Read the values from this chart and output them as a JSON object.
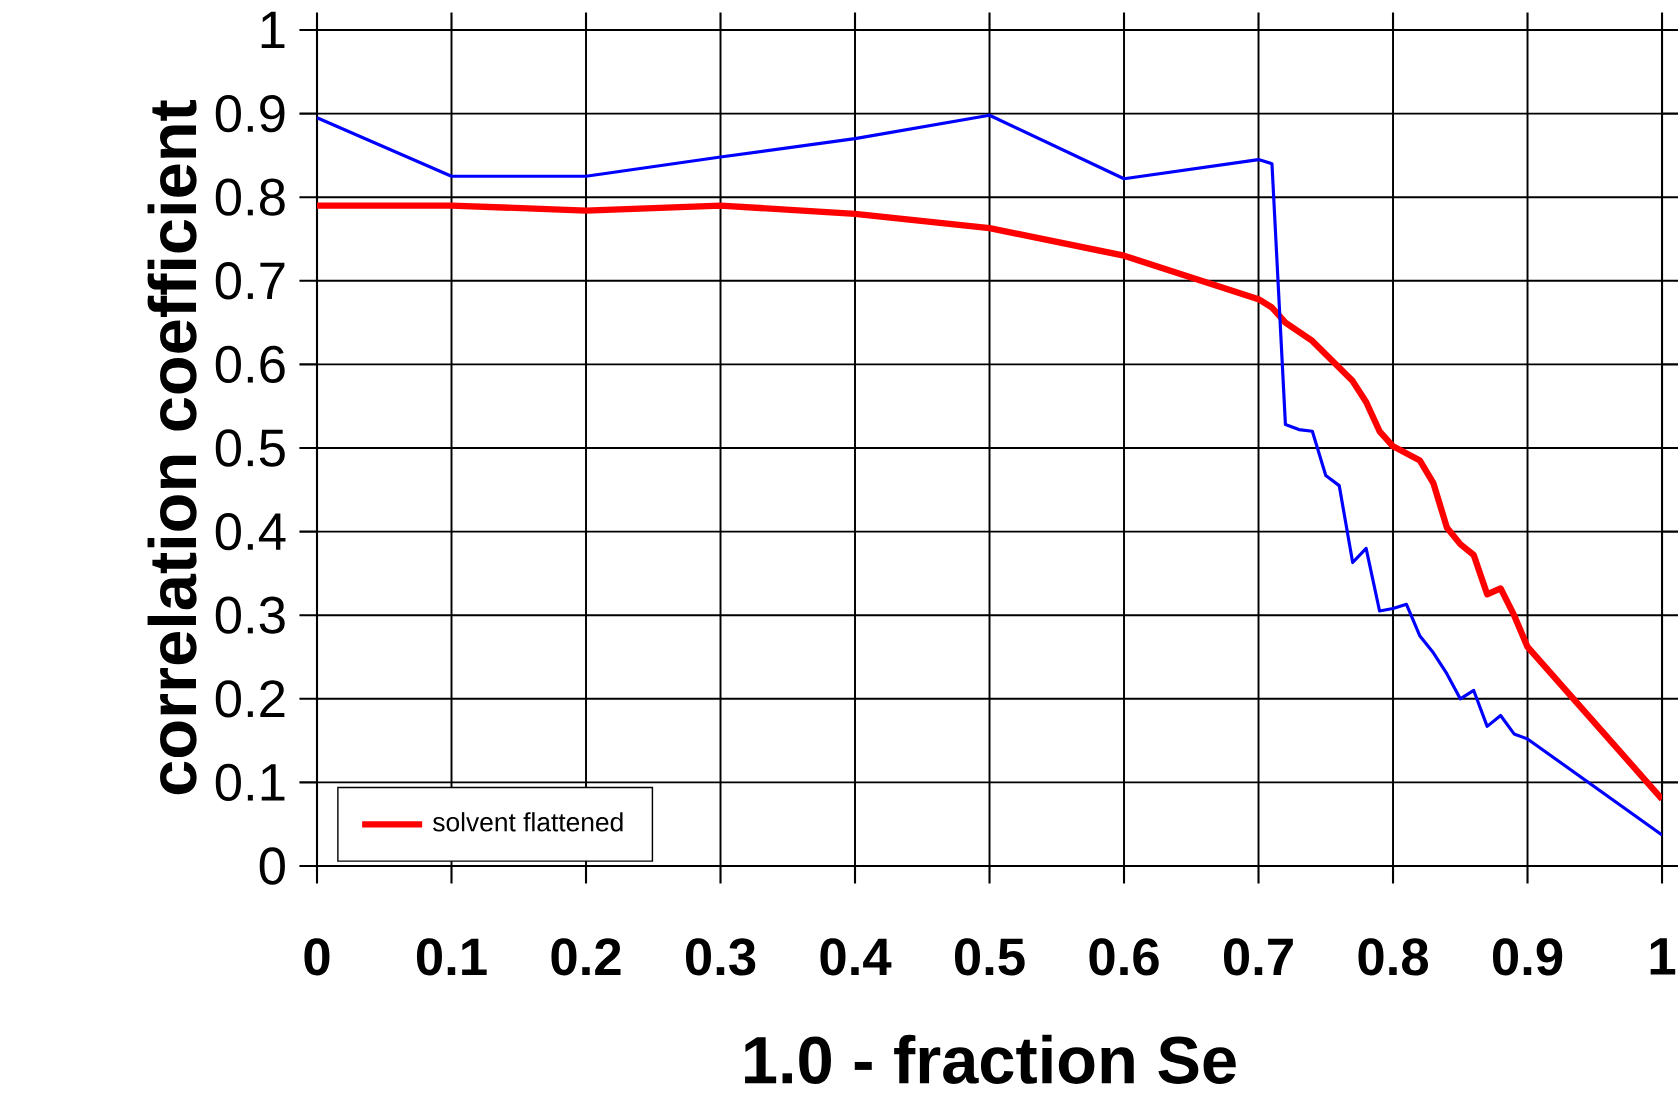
{
  "chart_data": {
    "type": "line",
    "xlabel": "1.0 - fraction Se",
    "ylabel": "correlation coefficient",
    "xlim": [
      0,
      1
    ],
    "ylim": [
      0,
      1
    ],
    "xticks": [
      0,
      0.1,
      0.2,
      0.3,
      0.4,
      0.5,
      0.6,
      0.7,
      0.8,
      0.9,
      1
    ],
    "yticks": [
      0,
      0.1,
      0.2,
      0.3,
      0.4,
      0.5,
      0.6,
      0.7,
      0.8,
      0.9,
      1
    ],
    "grid": true,
    "legend": "bottom left",
    "marker": "none",
    "series": [
      {
        "name": "solvent flattened",
        "color": "#ff0000",
        "x": [
          0,
          0.1,
          0.2,
          0.3,
          0.4,
          0.5,
          0.6,
          0.7,
          0.71,
          0.72,
          0.74,
          0.77,
          0.78,
          0.79,
          0.8,
          0.82,
          0.83,
          0.84,
          0.85,
          0.86,
          0.87,
          0.88,
          0.89,
          0.9,
          1
        ],
        "values": [
          0.79,
          0.79,
          0.784,
          0.79,
          0.78,
          0.763,
          0.73,
          0.678,
          0.668,
          0.65,
          0.628,
          0.58,
          0.555,
          0.52,
          0.502,
          0.485,
          0.458,
          0.405,
          0.385,
          0.372,
          0.325,
          0.332,
          0.3,
          0.262,
          0.08
        ]
      },
      {
        "color": "#0000ff",
        "x": [
          0,
          0.1,
          0.2,
          0.3,
          0.4,
          0.5,
          0.6,
          0.7,
          0.71,
          0.72,
          0.73,
          0.74,
          0.75,
          0.76,
          0.77,
          0.78,
          0.79,
          0.8,
          0.81,
          0.82,
          0.83,
          0.84,
          0.85,
          0.86,
          0.87,
          0.88,
          0.89,
          0.9,
          1
        ],
        "values": [
          0.895,
          0.825,
          0.825,
          0.848,
          0.87,
          0.898,
          0.822,
          0.845,
          0.84,
          0.528,
          0.522,
          0.52,
          0.467,
          0.455,
          0.363,
          0.38,
          0.305,
          0.308,
          0.313,
          0.275,
          0.255,
          0.23,
          0.2,
          0.21,
          0.167,
          0.18,
          0.158,
          0.152,
          0.037
        ]
      }
    ]
  }
}
